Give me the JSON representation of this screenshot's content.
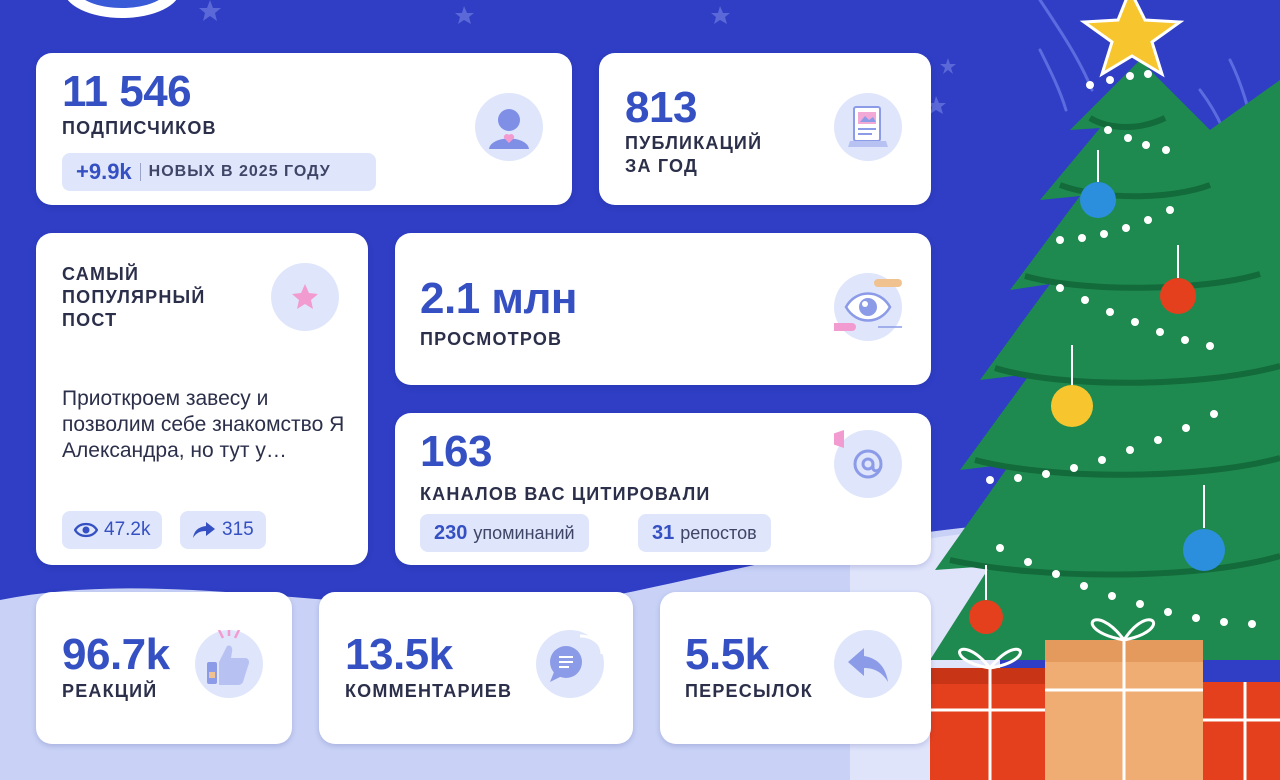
{
  "subscribers": {
    "count": "11 546",
    "label": "ПОДПИСЧИКОВ",
    "new_count": "+9.9k",
    "new_label": "НОВЫХ В 2025 ГОДУ",
    "icon": "user-icon"
  },
  "publications": {
    "count": "813",
    "label_line1": "ПУБЛИКАЦИЙ",
    "label_line2": "ЗА ГОД",
    "icon": "document-icon"
  },
  "popular_post": {
    "title_line1": "САМЫЙ",
    "title_line2": "ПОПУЛЯРНЫЙ",
    "title_line3": "ПОСТ",
    "text": "Приоткроем завесу и позволим себе знакомство Я Александра, но тут у…",
    "views": "47.2k",
    "shares": "315",
    "icon": "star-icon"
  },
  "views": {
    "count": "2.1 млн",
    "label": "ПРОСМОТРОВ",
    "icon": "eye-icon"
  },
  "citations": {
    "count": "163",
    "label": "КАНАЛОВ ВАС ЦИТИРОВАЛИ",
    "mentions_count": "230",
    "mentions_label": "упоминаний",
    "reposts_count": "31",
    "reposts_label": "репостов",
    "icon": "at-sign-icon"
  },
  "reactions": {
    "count": "96.7k",
    "label": "РЕАКЦИЙ",
    "icon": "thumbs-up-icon"
  },
  "comments": {
    "count": "13.5k",
    "label": "КОММЕНТАРИЕВ",
    "icon": "chat-bubble-icon"
  },
  "forwards": {
    "count": "5.5k",
    "label": "ПЕРЕСЫЛОК",
    "icon": "reply-arrow-icon"
  },
  "colors": {
    "background": "#2f3ec4",
    "accent": "#3550c2",
    "pill": "#dfe6fb",
    "tree": "#1e8a4f",
    "star": "#f7c62f"
  }
}
